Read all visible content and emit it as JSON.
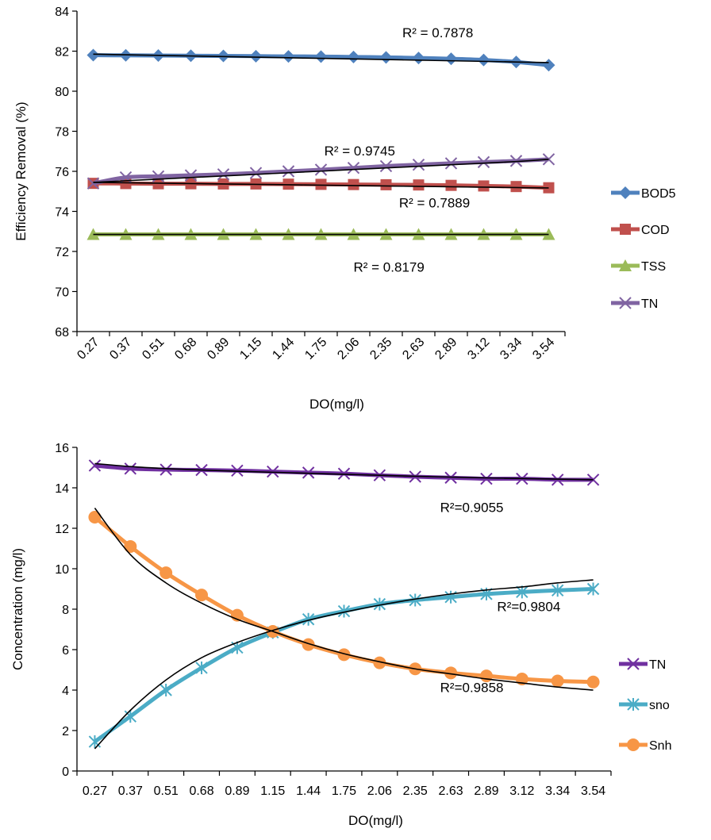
{
  "chart_data": [
    {
      "type": "line",
      "xlabel": "DO(mg/l)",
      "ylabel": "Efficiency Removal (%)",
      "ylim": [
        68,
        84
      ],
      "yticks": [
        68,
        70,
        72,
        74,
        76,
        78,
        80,
        82,
        84
      ],
      "x": [
        "0.27",
        "0.37",
        "0.51",
        "0.68",
        "0.89",
        "1.15",
        "1.44",
        "1.75",
        "2.06",
        "2.35",
        "2.63",
        "2.89",
        "3.12",
        "3.34",
        "3.54"
      ],
      "x_tick_labels": [
        "0.27",
        "0.37",
        "0.51",
        "0.68",
        "0.89",
        "1.15",
        "1.44",
        "1.75",
        "2.06",
        "2.35",
        "2.63",
        "2.89",
        "3.12",
        "3.34",
        "3.54"
      ],
      "legend_position": "right",
      "series": [
        {
          "name": "BOD5",
          "color": "#4F81BD",
          "marker": "diamond",
          "values": [
            81.8,
            81.79,
            81.78,
            81.77,
            81.76,
            81.75,
            81.74,
            81.73,
            81.71,
            81.69,
            81.66,
            81.62,
            81.56,
            81.46,
            81.3
          ]
        },
        {
          "name": "COD",
          "color": "#C0504D",
          "marker": "square",
          "values": [
            75.4,
            75.39,
            75.38,
            75.38,
            75.37,
            75.37,
            75.36,
            75.35,
            75.34,
            75.33,
            75.32,
            75.3,
            75.27,
            75.24,
            75.18
          ]
        },
        {
          "name": "TSS",
          "color": "#9BBB59",
          "marker": "triangle",
          "values": [
            72.85,
            72.85,
            72.85,
            72.85,
            72.85,
            72.85,
            72.85,
            72.85,
            72.85,
            72.85,
            72.85,
            72.85,
            72.85,
            72.85,
            72.85
          ]
        },
        {
          "name": "TN",
          "color": "#8064A2",
          "marker": "x",
          "values": [
            75.4,
            75.7,
            75.75,
            75.8,
            75.85,
            75.92,
            76.0,
            76.08,
            76.17,
            76.26,
            76.33,
            76.4,
            76.46,
            76.52,
            76.6
          ]
        }
      ],
      "trendlines": [
        {
          "values": [
            81.85,
            81.82,
            81.79,
            81.76,
            81.73,
            81.7,
            81.67,
            81.64,
            81.61,
            81.58,
            81.55,
            81.52,
            81.49,
            81.46,
            81.43
          ]
        },
        {
          "values": [
            75.45,
            75.43,
            75.41,
            75.39,
            75.37,
            75.35,
            75.33,
            75.31,
            75.29,
            75.27,
            75.25,
            75.23,
            75.21,
            75.19,
            75.17
          ]
        },
        {
          "values": [
            72.85,
            72.85,
            72.85,
            72.85,
            72.85,
            72.85,
            72.85,
            72.85,
            72.85,
            72.85,
            72.85,
            72.85,
            72.85,
            72.85,
            72.85
          ]
        },
        {
          "values": [
            75.45,
            75.53,
            75.61,
            75.69,
            75.77,
            75.85,
            75.93,
            76.01,
            76.09,
            76.17,
            76.25,
            76.33,
            76.41,
            76.49,
            76.6
          ]
        }
      ],
      "annotations": [
        {
          "text": "R² = 0.7878",
          "x": 10.0,
          "y": 82.7
        },
        {
          "text": "R² = 0.9745",
          "x": 7.6,
          "y": 76.8
        },
        {
          "text": "R² = 0.7889",
          "x": 9.9,
          "y": 74.2
        },
        {
          "text": "R² = 0.8179",
          "x": 8.5,
          "y": 71.0
        }
      ]
    },
    {
      "type": "line",
      "xlabel": "DO(mg/l)",
      "ylabel": "Concentration (mg/l)",
      "ylim": [
        0,
        16
      ],
      "yticks": [
        0,
        2,
        4,
        6,
        8,
        10,
        12,
        14,
        16
      ],
      "x": [
        "0.27",
        "0.37",
        "0.51",
        "0.68",
        "0.89",
        "1.15",
        "1.44",
        "1.75",
        "2.06",
        "2.35",
        "2.63",
        "2.89",
        "3.12",
        "3.34",
        "3.54"
      ],
      "x_tick_labels": [
        "0.27",
        "0.37",
        "0.51",
        "0.68",
        "0.89",
        "1.15",
        "1.44",
        "1.75",
        "2.06",
        "2.35",
        "2.63",
        "2.89",
        "3.12",
        "3.34",
        "3.54"
      ],
      "legend_position": "right",
      "series": [
        {
          "name": "TN",
          "color": "#7030A0",
          "marker": "x",
          "values": [
            15.1,
            14.95,
            14.9,
            14.88,
            14.85,
            14.8,
            14.75,
            14.7,
            14.62,
            14.55,
            14.5,
            14.45,
            14.45,
            14.4,
            14.4
          ]
        },
        {
          "name": "sno",
          "color": "#4BACC6",
          "marker": "asterisk",
          "values": [
            1.45,
            2.7,
            4.0,
            5.1,
            6.1,
            6.85,
            7.5,
            7.9,
            8.25,
            8.45,
            8.6,
            8.75,
            8.85,
            8.93,
            9.0
          ]
        },
        {
          "name": "Snh",
          "color": "#F79646",
          "marker": "circle",
          "values": [
            12.55,
            11.1,
            9.8,
            8.7,
            7.7,
            6.9,
            6.25,
            5.75,
            5.35,
            5.05,
            4.85,
            4.7,
            4.55,
            4.45,
            4.4
          ]
        }
      ],
      "trendlines": [
        {
          "values": [
            15.2,
            15.05,
            14.95,
            14.88,
            14.82,
            14.77,
            14.72,
            14.67,
            14.62,
            14.57,
            14.53,
            14.49,
            14.46,
            14.43,
            14.4
          ]
        },
        {
          "values": [
            1.1,
            3.0,
            4.5,
            5.6,
            6.35,
            6.95,
            7.45,
            7.85,
            8.2,
            8.5,
            8.75,
            8.95,
            9.1,
            9.3,
            9.45
          ]
        },
        {
          "values": [
            13.0,
            10.7,
            9.3,
            8.3,
            7.5,
            6.9,
            6.3,
            5.8,
            5.4,
            5.05,
            4.8,
            4.55,
            4.35,
            4.15,
            4.0
          ]
        }
      ],
      "annotations": [
        {
          "text": "R²=0.9055",
          "x": 10.2,
          "y": 12.8
        },
        {
          "text": "R²=0.9804",
          "x": 11.8,
          "y": 7.9
        },
        {
          "text": "R²=0.9858",
          "x": 10.2,
          "y": 3.9
        }
      ]
    }
  ]
}
